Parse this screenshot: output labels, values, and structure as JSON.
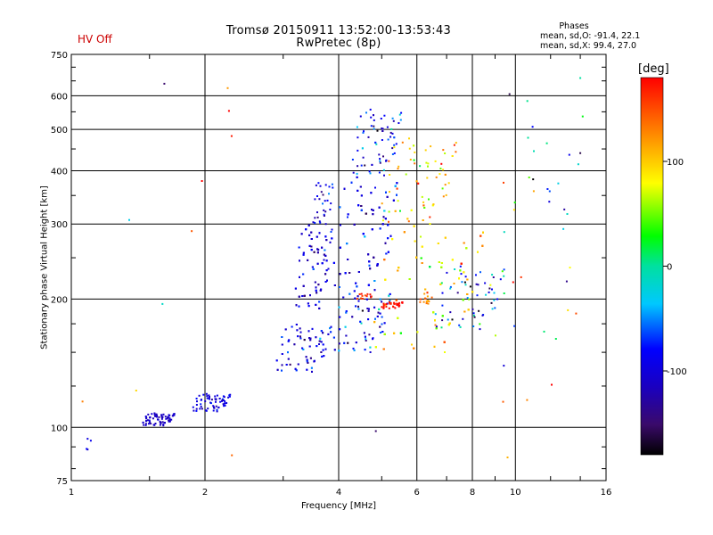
{
  "status": {
    "hv_label": "HV Off",
    "hv_color": "#cc0000"
  },
  "header": {
    "title_line1": "Tromsø 20150911 13:52:00-13:53:43",
    "title_line2": "RwPretec (8p)"
  },
  "phases_box": {
    "heading": "Phases",
    "line_o": "mean, sd,O: -91.4, 22.1",
    "line_x": "mean, sd,X:  99.4, 27.0"
  },
  "colorbar": {
    "label": "[deg]",
    "ticks": [
      "100",
      "0",
      "-100"
    ],
    "tick_values": [
      100,
      0,
      -100
    ],
    "range": [
      -180,
      180
    ]
  },
  "chart_data": {
    "type": "scatter",
    "xlabel": "Frequency [MHz]",
    "ylabel": "Stationary phase Virtual Height [km]",
    "x_scale": "log",
    "y_scale": "log",
    "xlim": [
      1,
      16
    ],
    "ylim": [
      75,
      750
    ],
    "x_ticks": [
      1,
      2,
      4,
      6,
      8,
      10,
      16
    ],
    "x_tick_labels": [
      "1",
      "2",
      "4",
      "6",
      "8",
      "10",
      "16"
    ],
    "y_ticks": [
      75,
      100,
      200,
      300,
      400,
      500,
      600,
      750
    ],
    "y_tick_labels": [
      "75",
      "100",
      "200",
      "300",
      "400",
      "500",
      "600",
      "750"
    ],
    "grid": true,
    "color_encodes": "phase [deg]",
    "clusters": [
      {
        "x_range": [
          1.07,
          1.12
        ],
        "y_range": [
          88,
          96
        ],
        "count": 4,
        "phase_mean": -95,
        "phase_sd": 10
      },
      {
        "x_range": [
          1.45,
          1.72
        ],
        "y_range": [
          101,
          108
        ],
        "count": 80,
        "phase_mean": -112,
        "phase_sd": 8
      },
      {
        "x_range": [
          1.88,
          2.3
        ],
        "y_range": [
          109,
          120
        ],
        "count": 70,
        "phase_mean": -100,
        "phase_sd": 15
      },
      {
        "x_range": [
          2.9,
          3.9
        ],
        "y_range": [
          135,
          175
        ],
        "count": 130,
        "phase_mean": -100,
        "phase_sd": 25
      },
      {
        "x_range": [
          3.2,
          3.9
        ],
        "y_range": [
          190,
          300
        ],
        "count": 190,
        "phase_mean": -105,
        "phase_sd": 20
      },
      {
        "x_range": [
          3.5,
          3.9
        ],
        "y_range": [
          300,
          380
        ],
        "count": 30,
        "phase_mean": -100,
        "phase_sd": 20
      },
      {
        "x_range": [
          3.9,
          5.3
        ],
        "y_range": [
          150,
          210
        ],
        "count": 120,
        "phase_mean": -90,
        "phase_sd": 35
      },
      {
        "x_range": [
          3.9,
          5.5
        ],
        "y_range": [
          210,
          390
        ],
        "count": 260,
        "phase_mean": -95,
        "phase_sd": 25
      },
      {
        "x_range": [
          4.3,
          5.6
        ],
        "y_range": [
          390,
          560
        ],
        "count": 70,
        "phase_mean": -90,
        "phase_sd": 35
      },
      {
        "x_range": [
          4.8,
          8.7
        ],
        "y_range": [
          150,
          300
        ],
        "count": 300,
        "phase_mean": 90,
        "phase_sd": 30
      },
      {
        "x_range": [
          5.0,
          7.5
        ],
        "y_range": [
          300,
          480
        ],
        "count": 80,
        "phase_mean": 95,
        "phase_sd": 35
      },
      {
        "x_range": [
          5.0,
          5.6
        ],
        "y_range": [
          190,
          197
        ],
        "count": 35,
        "phase_mean": 175,
        "phase_sd": 6
      },
      {
        "x_range": [
          4.4,
          4.8
        ],
        "y_range": [
          200,
          206
        ],
        "count": 12,
        "phase_mean": 165,
        "phase_sd": 8
      },
      {
        "x_range": [
          6.0,
          6.6
        ],
        "y_range": [
          195,
          207
        ],
        "count": 14,
        "phase_mean": 130,
        "phase_sd": 15
      },
      {
        "x_range": [
          6.6,
          9.6
        ],
        "y_range": [
          170,
          240
        ],
        "count": 60,
        "phase_mean": -80,
        "phase_sd": 60
      },
      {
        "x_range": [
          9.0,
          14.5
        ],
        "y_range": [
          110,
          600
        ],
        "count": 35,
        "phase_mean": 0,
        "phase_sd": 100
      },
      {
        "x_range": [
          1.04,
          2.4
        ],
        "y_range": [
          113,
          650
        ],
        "count": 6,
        "phase_mean": 60,
        "phase_sd": 90
      }
    ],
    "points": [
      {
        "x": 1.62,
        "y": 640,
        "phase": -150
      },
      {
        "x": 2.25,
        "y": 625,
        "phase": 120
      },
      {
        "x": 1.06,
        "y": 115,
        "phase": 130
      },
      {
        "x": 1.4,
        "y": 122,
        "phase": 95
      },
      {
        "x": 4.85,
        "y": 98,
        "phase": -150
      },
      {
        "x": 2.3,
        "y": 86,
        "phase": 140
      },
      {
        "x": 14.0,
        "y": 660,
        "phase": 0
      },
      {
        "x": 14.0,
        "y": 440,
        "phase": -160
      },
      {
        "x": 9.7,
        "y": 605,
        "phase": -160
      },
      {
        "x": 9.6,
        "y": 85,
        "phase": 110
      },
      {
        "x": 10.3,
        "y": 225,
        "phase": 160
      },
      {
        "x": 13.7,
        "y": 185,
        "phase": 150
      }
    ]
  }
}
